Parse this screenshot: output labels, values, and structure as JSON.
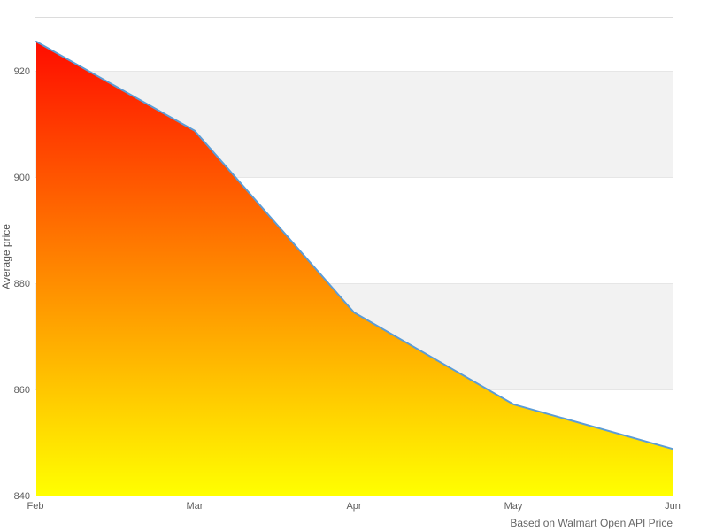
{
  "chart_data": {
    "type": "area",
    "title": "",
    "xlabel": "",
    "ylabel": "Average price",
    "categories": [
      "Feb",
      "Mar",
      "Apr",
      "May",
      "Jun"
    ],
    "values": [
      925.5,
      908.7,
      874.5,
      857.2,
      848.8
    ],
    "ylim": [
      840,
      930
    ],
    "yticks": [
      840,
      860,
      880,
      900,
      920
    ],
    "alternate_band_ranges": [
      [
        860,
        880
      ],
      [
        900,
        920
      ]
    ],
    "grid": true,
    "legend": false,
    "credit": "Based on Walmart Open API Price",
    "colors": {
      "area_gradient_top": "#ff0000",
      "area_gradient_bottom": "#ffff00",
      "line": "#5b9cd6",
      "band_fill": "#f2f2f2",
      "gridline": "#e6e6e6",
      "plot_border": "#dcdcdc",
      "axis_label": "#606060",
      "axis_title": "#555555",
      "credit_text": "#666666",
      "background": "#ffffff"
    }
  }
}
